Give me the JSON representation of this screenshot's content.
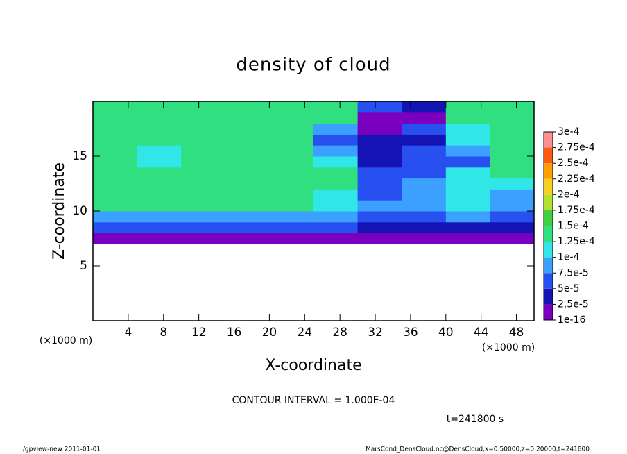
{
  "chart_data": {
    "type": "heatmap",
    "title": "density of cloud",
    "xlabel": "X-coordinate",
    "ylabel": "Z-coordinate",
    "xunit": "(×1000 m)",
    "yunit": "(×1000 m)",
    "xlim": [
      0,
      50
    ],
    "ylim": [
      0,
      20
    ],
    "xticks": [
      4,
      8,
      12,
      16,
      20,
      24,
      28,
      32,
      36,
      40,
      44,
      48
    ],
    "yticks": [
      5,
      10,
      15
    ],
    "x": [
      2.5,
      7.5,
      12.5,
      17.5,
      22.5,
      27.5,
      32.5,
      37.5,
      42.5,
      47.5
    ],
    "z": [
      0.5,
      1.5,
      2.5,
      3.5,
      4.5,
      5.5,
      6.5,
      7.5,
      8.5,
      9.5,
      10.5,
      11.5,
      12.5,
      13.5,
      14.5,
      15.5,
      16.5,
      17.5,
      18.5,
      19.5
    ],
    "values": [
      [
        null,
        null,
        null,
        null,
        null,
        null,
        null,
        null,
        null,
        null
      ],
      [
        null,
        null,
        null,
        null,
        null,
        null,
        null,
        null,
        null,
        null
      ],
      [
        null,
        null,
        null,
        null,
        null,
        null,
        null,
        null,
        null,
        null
      ],
      [
        null,
        null,
        null,
        null,
        null,
        null,
        null,
        null,
        null,
        null
      ],
      [
        null,
        null,
        null,
        null,
        null,
        null,
        null,
        null,
        null,
        null
      ],
      [
        null,
        null,
        null,
        null,
        null,
        null,
        null,
        null,
        null,
        null
      ],
      [
        null,
        null,
        null,
        null,
        null,
        null,
        null,
        null,
        null,
        null
      ],
      [
        1e-05,
        1e-05,
        1e-05,
        1e-05,
        1e-05,
        1e-05,
        1e-05,
        1e-05,
        2e-05,
        1e-05
      ],
      [
        6e-05,
        6e-05,
        6e-05,
        6e-05,
        6e-05,
        5e-05,
        3e-05,
        3e-05,
        4e-05,
        4e-05
      ],
      [
        9e-05,
        9e-05,
        9e-05,
        9e-05,
        9e-05,
        8e-05,
        6e-05,
        7e-05,
        8e-05,
        5e-05
      ],
      [
        0.00013,
        0.00013,
        0.00013,
        0.00013,
        0.00013,
        0.00011,
        8e-05,
        9e-05,
        0.00011,
        8e-05
      ],
      [
        0.00013,
        0.00013,
        0.00013,
        0.00013,
        0.00013,
        0.00012,
        7e-05,
        9e-05,
        0.00012,
        9e-05
      ],
      [
        0.00013,
        0.000135,
        0.00014,
        0.00014,
        0.00014,
        0.000125,
        6e-05,
        8e-05,
        0.00012,
        0.00011
      ],
      [
        0.00013,
        0.000135,
        0.00014,
        0.000145,
        0.000145,
        0.00013,
        5e-05,
        7e-05,
        0.00011,
        0.00013
      ],
      [
        0.00013,
        0.00011,
        0.00014,
        0.000145,
        0.000145,
        0.00012,
        4e-05,
        6e-05,
        6e-05,
        0.00013
      ],
      [
        0.00013,
        0.00012,
        0.00014,
        0.000145,
        0.00014,
        9e-05,
        4e-05,
        5e-05,
        8e-05,
        0.00013
      ],
      [
        0.00013,
        0.00013,
        0.000135,
        0.00014,
        0.000135,
        6e-05,
        3e-05,
        4e-05,
        0.00012,
        0.00013
      ],
      [
        0.00013,
        0.00013,
        0.000135,
        0.000135,
        0.00013,
        9e-05,
        1e-05,
        5e-05,
        0.00012,
        0.00013
      ],
      [
        0.000135,
        0.000135,
        0.000135,
        0.000135,
        0.000135,
        0.00013,
        1e-05,
        2e-05,
        0.00013,
        0.00013
      ],
      [
        0.000135,
        0.000135,
        0.000135,
        0.000135,
        0.000135,
        0.000135,
        5e-05,
        3e-05,
        0.00013,
        0.00013
      ]
    ],
    "levels": [
      {
        "value": 1e-16,
        "label": "1e-16"
      },
      {
        "value": 2.5e-05,
        "label": "2.5e-5"
      },
      {
        "value": 5e-05,
        "label": "5e-5"
      },
      {
        "value": 7.5e-05,
        "label": "7.5e-5"
      },
      {
        "value": 0.0001,
        "label": "1e-4"
      },
      {
        "value": 0.000125,
        "label": "1.25e-4"
      },
      {
        "value": 0.00015,
        "label": "1.5e-4"
      },
      {
        "value": 0.000175,
        "label": "1.75e-4"
      },
      {
        "value": 0.0002,
        "label": "2e-4"
      },
      {
        "value": 0.000225,
        "label": "2.25e-4"
      },
      {
        "value": 0.00025,
        "label": "2.5e-4"
      },
      {
        "value": 0.000275,
        "label": "2.75e-4"
      },
      {
        "value": 0.0003,
        "label": "3e-4"
      }
    ],
    "colors": [
      "#7a00c0",
      "#1414b4",
      "#2850f0",
      "#3ca0ff",
      "#30e6e6",
      "#30e080",
      "#40d040",
      "#b4e030",
      "#f5d020",
      "#ffa000",
      "#ff5a14",
      "#ff9090"
    ],
    "contour_note": "CONTOUR INTERVAL = 1.000E-04",
    "time_note": "t=241800 s",
    "footer_left": "./gpview-new   2011-01-01",
    "footer_right": "MarsCond_DensCloud.nc@DensCloud,x=0:50000,z=0:20000,t=241800"
  }
}
